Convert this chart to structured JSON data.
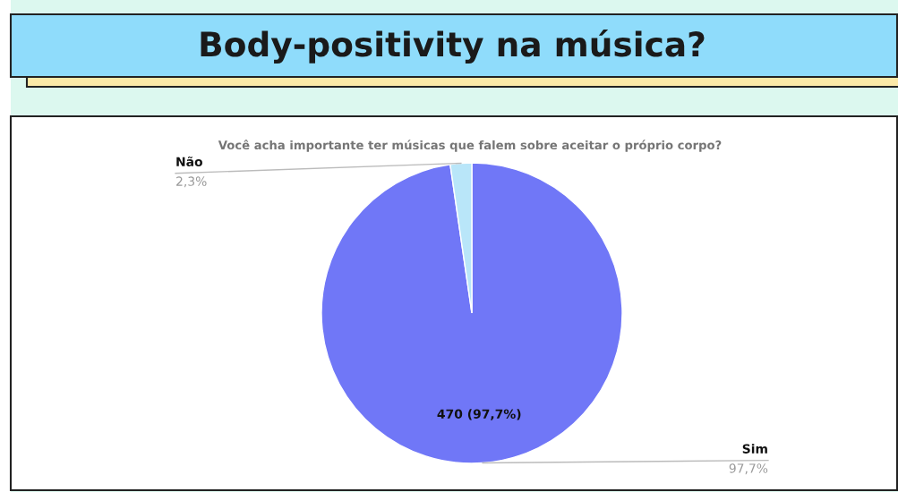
{
  "chart_data": {
    "type": "pie",
    "title": "Body-positivity na música?",
    "subtitle": "Você acha importante ter músicas que falem sobre aceitar o próprio corpo?",
    "categories": [
      "Sim",
      "Não"
    ],
    "values": [
      97.7,
      2.3
    ],
    "colors": [
      "#7077f7",
      "#b9e6f9"
    ],
    "value_labels": [
      "470 (97,7%)",
      null
    ],
    "annotations": [
      "97,7%",
      "2,3%"
    ],
    "legend": false
  }
}
